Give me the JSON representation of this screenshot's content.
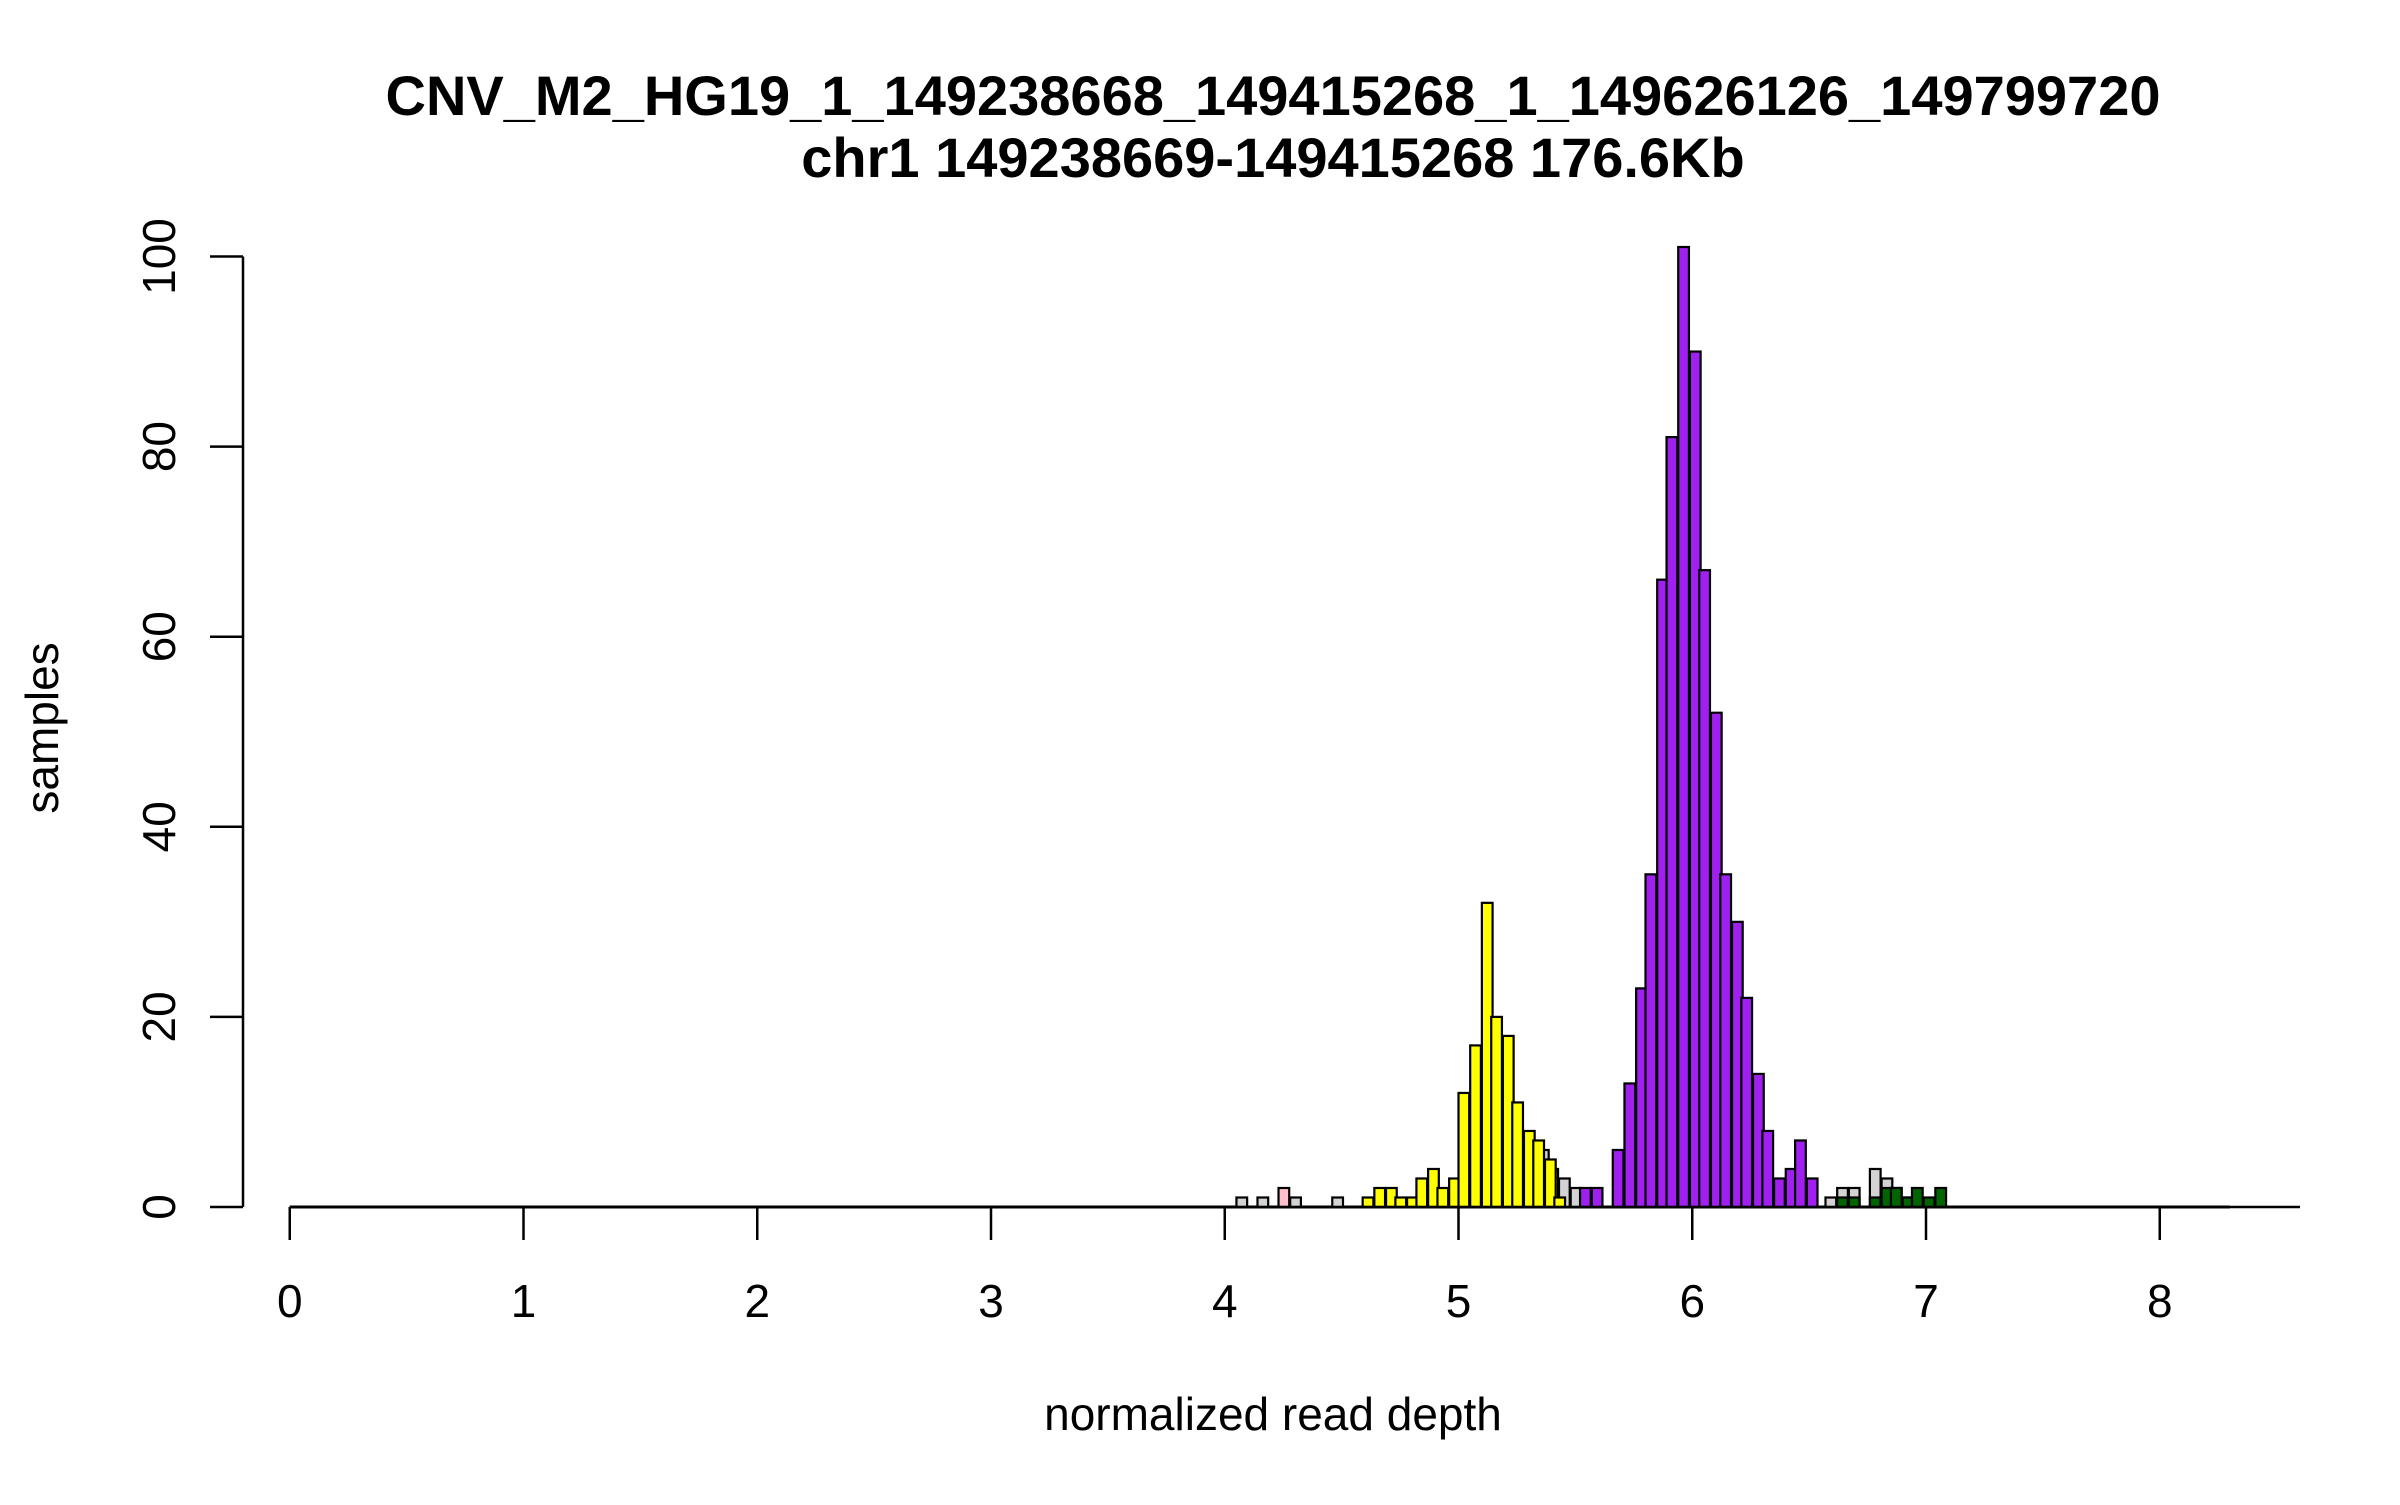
{
  "chart_data": {
    "type": "bar",
    "title": "CNV_M2_HG19_1_149238668_149415268_1_149626126_149799720",
    "subtitle": "chr1 149238669-149415268 176.6Kb",
    "xlabel": "normalized read depth",
    "ylabel": "samples",
    "xlim": [
      -0.2,
      8.6
    ],
    "ylim": [
      0,
      101
    ],
    "x_ticks": [
      0,
      1,
      2,
      3,
      4,
      5,
      6,
      7,
      8
    ],
    "y_ticks": [
      0,
      20,
      40,
      60,
      80,
      100
    ],
    "grid": false,
    "bin_width": 0.0458,
    "colors": {
      "gray": "#d3d3d3",
      "pink": "#ffc0cb",
      "yellow": "#ffff00",
      "purple": "#a020f0",
      "green": "#006400",
      "outline": "#000000"
    },
    "series": [
      {
        "color": "gray",
        "bins": [
          [
            4.05,
            1
          ],
          [
            4.14,
            1
          ],
          [
            4.28,
            1
          ],
          [
            4.46,
            1
          ],
          [
            5.34,
            6
          ],
          [
            5.38,
            4
          ],
          [
            5.43,
            3
          ],
          [
            5.48,
            2
          ],
          [
            6.57,
            1
          ],
          [
            6.62,
            2
          ],
          [
            6.67,
            2
          ],
          [
            6.76,
            4
          ],
          [
            6.81,
            3
          ],
          [
            6.85,
            2
          ],
          [
            6.9,
            1
          ]
        ]
      },
      {
        "color": "pink",
        "bins": [
          [
            4.23,
            2
          ]
        ]
      },
      {
        "color": "yellow",
        "bins": [
          [
            4.59,
            1
          ],
          [
            4.64,
            2
          ],
          [
            4.69,
            2
          ],
          [
            4.73,
            1
          ],
          [
            4.78,
            1
          ],
          [
            4.82,
            3
          ],
          [
            4.87,
            4
          ],
          [
            4.91,
            2
          ],
          [
            4.96,
            3
          ],
          [
            5.0,
            12
          ],
          [
            5.05,
            17
          ],
          [
            5.1,
            32
          ],
          [
            5.14,
            20
          ],
          [
            5.19,
            18
          ],
          [
            5.23,
            11
          ],
          [
            5.28,
            8
          ],
          [
            5.32,
            7
          ],
          [
            5.37,
            5
          ],
          [
            5.41,
            1
          ]
        ]
      },
      {
        "color": "purple",
        "bins": [
          [
            5.52,
            2
          ],
          [
            5.57,
            2
          ],
          [
            5.66,
            6
          ],
          [
            5.71,
            13
          ],
          [
            5.76,
            23
          ],
          [
            5.8,
            35
          ],
          [
            5.85,
            66
          ],
          [
            5.89,
            81
          ],
          [
            5.94,
            101
          ],
          [
            5.99,
            90
          ],
          [
            6.03,
            67
          ],
          [
            6.08,
            52
          ],
          [
            6.12,
            35
          ],
          [
            6.17,
            30
          ],
          [
            6.21,
            22
          ],
          [
            6.26,
            14
          ],
          [
            6.3,
            8
          ],
          [
            6.35,
            3
          ],
          [
            6.4,
            4
          ],
          [
            6.44,
            7
          ],
          [
            6.49,
            3
          ]
        ]
      },
      {
        "color": "green",
        "bins": [
          [
            6.62,
            1
          ],
          [
            6.67,
            1
          ],
          [
            6.76,
            1
          ],
          [
            6.81,
            2
          ],
          [
            6.85,
            2
          ],
          [
            6.9,
            1
          ],
          [
            6.94,
            2
          ],
          [
            6.99,
            1
          ],
          [
            7.04,
            2
          ]
        ]
      }
    ]
  }
}
